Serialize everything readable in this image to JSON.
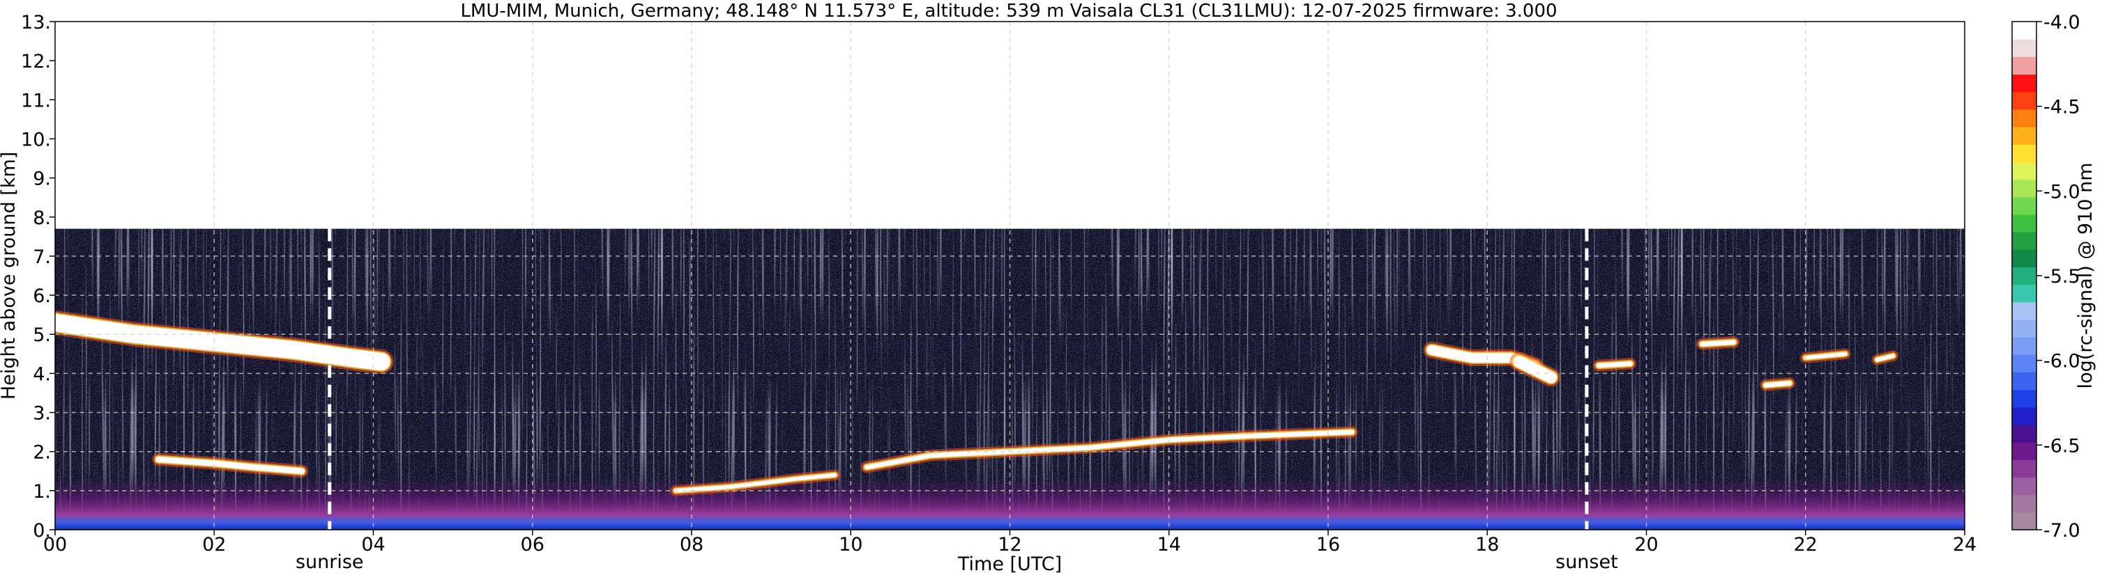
{
  "chart_data": {
    "type": "heatmap",
    "title": "LMU-MIM, Munich, Germany; 48.148° N 11.573° E, altitude: 539 m    Vaisala CL31 (CL31LMU): 12-07-2025    firmware: 3.000",
    "xlabel": "Time [UTC]",
    "ylabel": "Height above ground [km]",
    "xlim": [
      0,
      24
    ],
    "ylim": [
      0,
      13
    ],
    "x_ticks": [
      0,
      2,
      4,
      6,
      8,
      10,
      12,
      14,
      16,
      18,
      20,
      22,
      24
    ],
    "x_tick_labels": [
      "00",
      "02",
      "04",
      "06",
      "08",
      "10",
      "12",
      "14",
      "16",
      "18",
      "20",
      "22",
      "24"
    ],
    "y_ticks": [
      0,
      1,
      2,
      3,
      4,
      5,
      6,
      7,
      8,
      9,
      10,
      11,
      12,
      13
    ],
    "y_tick_labels": [
      "0.",
      "1.",
      "2.",
      "3.",
      "4.",
      "5.",
      "6.",
      "7.",
      "8.",
      "9.",
      "10.",
      "11.",
      "12.",
      "13."
    ],
    "grid": true,
    "data_top_km": 7.7,
    "colorbar": {
      "label": "log(rc-signal) @ 910 nm",
      "range": [
        -7.0,
        -4.0
      ],
      "ticks": [
        -7.0,
        -6.5,
        -6.0,
        -5.5,
        -5.0,
        -4.5,
        -4.0
      ],
      "tick_labels": [
        "-7.0",
        "-6.5",
        "-6.0",
        "-5.5",
        "-5.0",
        "-4.5",
        "-4.0"
      ],
      "colors": [
        "#a8889e",
        "#a078a0",
        "#9a60a0",
        "#8a3c98",
        "#6e1a8c",
        "#4a1092",
        "#2020c8",
        "#1e40e8",
        "#3a64f0",
        "#5a84f4",
        "#7a9cf4",
        "#92b2f4",
        "#a8c4f4",
        "#38c8b0",
        "#20b080",
        "#108848",
        "#20a040",
        "#40c040",
        "#70d850",
        "#a8e858",
        "#e0f058",
        "#ffe030",
        "#ffb018",
        "#ff8010",
        "#ff4010",
        "#ff1010",
        "#f0a0a0",
        "#ecdcdc",
        "#ffffff"
      ]
    },
    "events": [
      {
        "name": "sunrise",
        "x": 3.45
      },
      {
        "name": "sunset",
        "x": 19.25
      }
    ],
    "features": [
      {
        "kind": "cloud",
        "x": [
          0.0,
          1.0,
          2.0,
          3.0,
          3.7,
          4.1
        ],
        "y": [
          5.3,
          5.0,
          4.8,
          4.6,
          4.4,
          4.3
        ],
        "thickness_km": 0.45
      },
      {
        "kind": "cloud",
        "x": [
          17.3,
          17.8,
          18.3,
          18.6
        ],
        "y": [
          4.6,
          4.4,
          4.4,
          4.2
        ],
        "thickness_km": 0.25
      },
      {
        "kind": "cloud",
        "x": [
          18.4,
          18.6,
          18.8
        ],
        "y": [
          4.3,
          4.1,
          3.9
        ],
        "thickness_km": 0.3
      },
      {
        "kind": "cloud",
        "x": [
          19.4,
          19.8
        ],
        "y": [
          4.2,
          4.25
        ],
        "thickness_km": 0.12
      },
      {
        "kind": "cloud",
        "x": [
          20.7,
          21.1
        ],
        "y": [
          4.75,
          4.8
        ],
        "thickness_km": 0.12
      },
      {
        "kind": "cloud",
        "x": [
          21.5,
          21.8
        ],
        "y": [
          3.7,
          3.75
        ],
        "thickness_km": 0.12
      },
      {
        "kind": "cloud",
        "x": [
          22.0,
          22.5
        ],
        "y": [
          4.4,
          4.5
        ],
        "thickness_km": 0.1
      },
      {
        "kind": "cloud",
        "x": [
          22.9,
          23.1
        ],
        "y": [
          4.35,
          4.45
        ],
        "thickness_km": 0.1
      },
      {
        "kind": "cloud",
        "x": [
          1.3,
          2.0,
          2.5,
          3.1
        ],
        "y": [
          1.8,
          1.7,
          1.6,
          1.5
        ],
        "thickness_km": 0.15
      },
      {
        "kind": "cloud",
        "x": [
          10.2,
          11.0,
          12.0,
          13.0,
          14.0,
          15.0,
          16.3
        ],
        "y": [
          1.6,
          1.9,
          2.0,
          2.1,
          2.3,
          2.4,
          2.5
        ],
        "thickness_km": 0.12
      },
      {
        "kind": "cloud",
        "x": [
          7.8,
          8.5,
          9.3,
          9.8
        ],
        "y": [
          1.0,
          1.1,
          1.3,
          1.4
        ],
        "thickness_km": 0.1
      }
    ],
    "boundary_layer_top_km": {
      "x": [
        0,
        4,
        8,
        12,
        16,
        19,
        24
      ],
      "y": [
        0.9,
        0.9,
        1.0,
        1.2,
        1.2,
        1.0,
        0.9
      ]
    }
  }
}
